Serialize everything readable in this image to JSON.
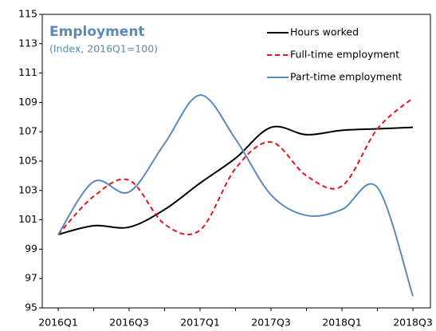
{
  "chart_data": {
    "type": "line",
    "title": "Employment",
    "subtitle": "(Index, 2016Q1=100)",
    "categories": [
      "2016Q1",
      null,
      "2016Q3",
      null,
      "2017Q1",
      null,
      "2017Q3",
      null,
      "2018Q1",
      null,
      "2018Q3"
    ],
    "series": [
      {
        "name": "Hours worked",
        "color": "#000000",
        "line_style": "solid",
        "values": [
          100,
          100.6,
          100.5,
          101.7,
          103.5,
          105.2,
          107.3,
          106.8,
          107.1,
          107.2,
          107.3
        ]
      },
      {
        "name": "Full-time employment",
        "color": "#e8141b",
        "line_style": "dashed",
        "values": [
          100,
          102.6,
          103.7,
          100.7,
          100.3,
          104.5,
          106.3,
          104.0,
          103.3,
          107.2,
          109.3
        ]
      },
      {
        "name": "Part-time employment",
        "color": "#5a8ab8",
        "line_style": "solid",
        "values": [
          100,
          103.6,
          102.9,
          106.2,
          109.5,
          106.5,
          102.7,
          101.3,
          101.7,
          103.2,
          95.8
        ]
      }
    ],
    "ylim": [
      95,
      115
    ],
    "yticks": [
      95,
      97,
      99,
      101,
      103,
      105,
      107,
      109,
      111,
      113,
      115
    ],
    "grid": false,
    "legend": "upper right"
  }
}
